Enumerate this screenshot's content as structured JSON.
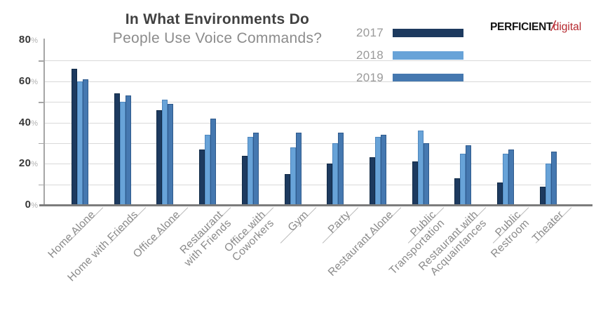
{
  "title": {
    "line1": "In What Environments Do",
    "line2": "People Use Voice Commands?"
  },
  "logo": {
    "brand": "PERFICIENT",
    "slash": "/",
    "suffix": "digital",
    "brand_color": "#141414",
    "accent_color": "#b5272d"
  },
  "chart_data": {
    "type": "bar",
    "title": "In What Environments Do People Use Voice Commands?",
    "categories": [
      "Home Alone",
      "Home with Friends",
      "Office Alone",
      "Restaurant\nwith Friends",
      "Office with\nCoworkers",
      "Gym",
      "Party",
      "Restaurant Alone",
      "Public\nTransportation",
      "Restaurant with\nAcquaintances",
      "Public\nRestroom",
      "Theater"
    ],
    "series": [
      {
        "name": "2017",
        "color": "#1d3a5f",
        "border": "#122b47",
        "values": [
          66,
          54,
          46,
          27,
          24,
          15,
          20,
          23,
          21,
          13,
          11,
          9
        ]
      },
      {
        "name": "2018",
        "color": "#68a3d8",
        "border": "#4e86bd",
        "values": [
          60,
          50,
          51,
          34,
          33,
          28,
          30,
          33,
          36,
          25,
          25,
          20
        ]
      },
      {
        "name": "2019",
        "color": "#4578b0",
        "border": "#2f5a8c",
        "values": [
          61,
          53,
          49,
          42,
          35,
          35,
          35,
          34,
          30,
          29,
          27,
          26
        ]
      }
    ],
    "ylim": [
      0,
      80
    ],
    "yticks": [
      80,
      60,
      40,
      20,
      0
    ],
    "ytick_suffix": "%",
    "grid_step": 10,
    "grid": true,
    "legend_position": "top-right",
    "xlabel": "",
    "ylabel": ""
  }
}
